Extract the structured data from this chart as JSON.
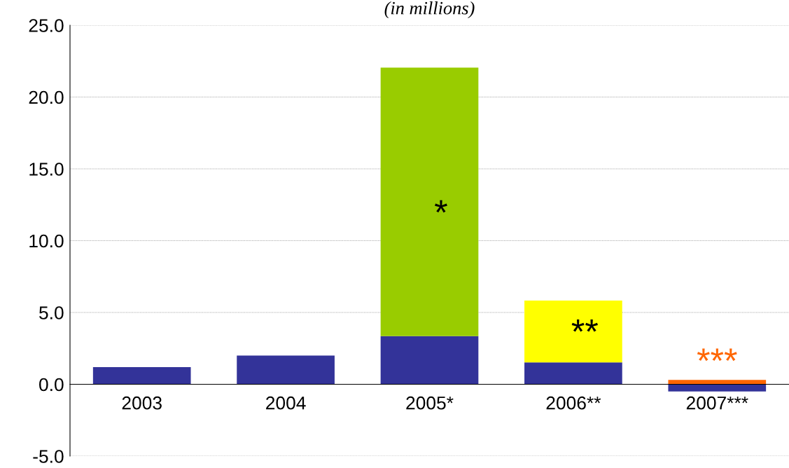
{
  "chart_data": {
    "type": "bar",
    "title": "(in millions)",
    "stacked": true,
    "categories": [
      "2003",
      "2004",
      "2005*",
      "2006**",
      "2007***"
    ],
    "series": [
      {
        "color": "#333399",
        "values": [
          1.2,
          2.0,
          3.35,
          1.53,
          -0.5
        ]
      },
      {
        "color": "#99cc00",
        "values": [
          null,
          null,
          18.7,
          null,
          null
        ]
      },
      {
        "color": "#ffff00",
        "values": [
          null,
          null,
          null,
          4.3,
          null
        ]
      },
      {
        "color": "#ff6600",
        "values": [
          null,
          null,
          null,
          null,
          0.3
        ]
      }
    ],
    "ylim": [
      -5,
      25
    ],
    "yticks": [
      {
        "value": -5,
        "label": "-5.0"
      },
      {
        "value": 0,
        "label": "0.0"
      },
      {
        "value": 5,
        "label": "5.0"
      },
      {
        "value": 10,
        "label": "10.0"
      },
      {
        "value": 15,
        "label": "15.0"
      },
      {
        "value": 20,
        "label": "20.0"
      },
      {
        "value": 25,
        "label": "25.0"
      }
    ],
    "grid": "y",
    "annotations": [
      "*",
      "**",
      {
        "text": "***",
        "x": "2007***",
        "y": 0.3
      }
    ]
  }
}
